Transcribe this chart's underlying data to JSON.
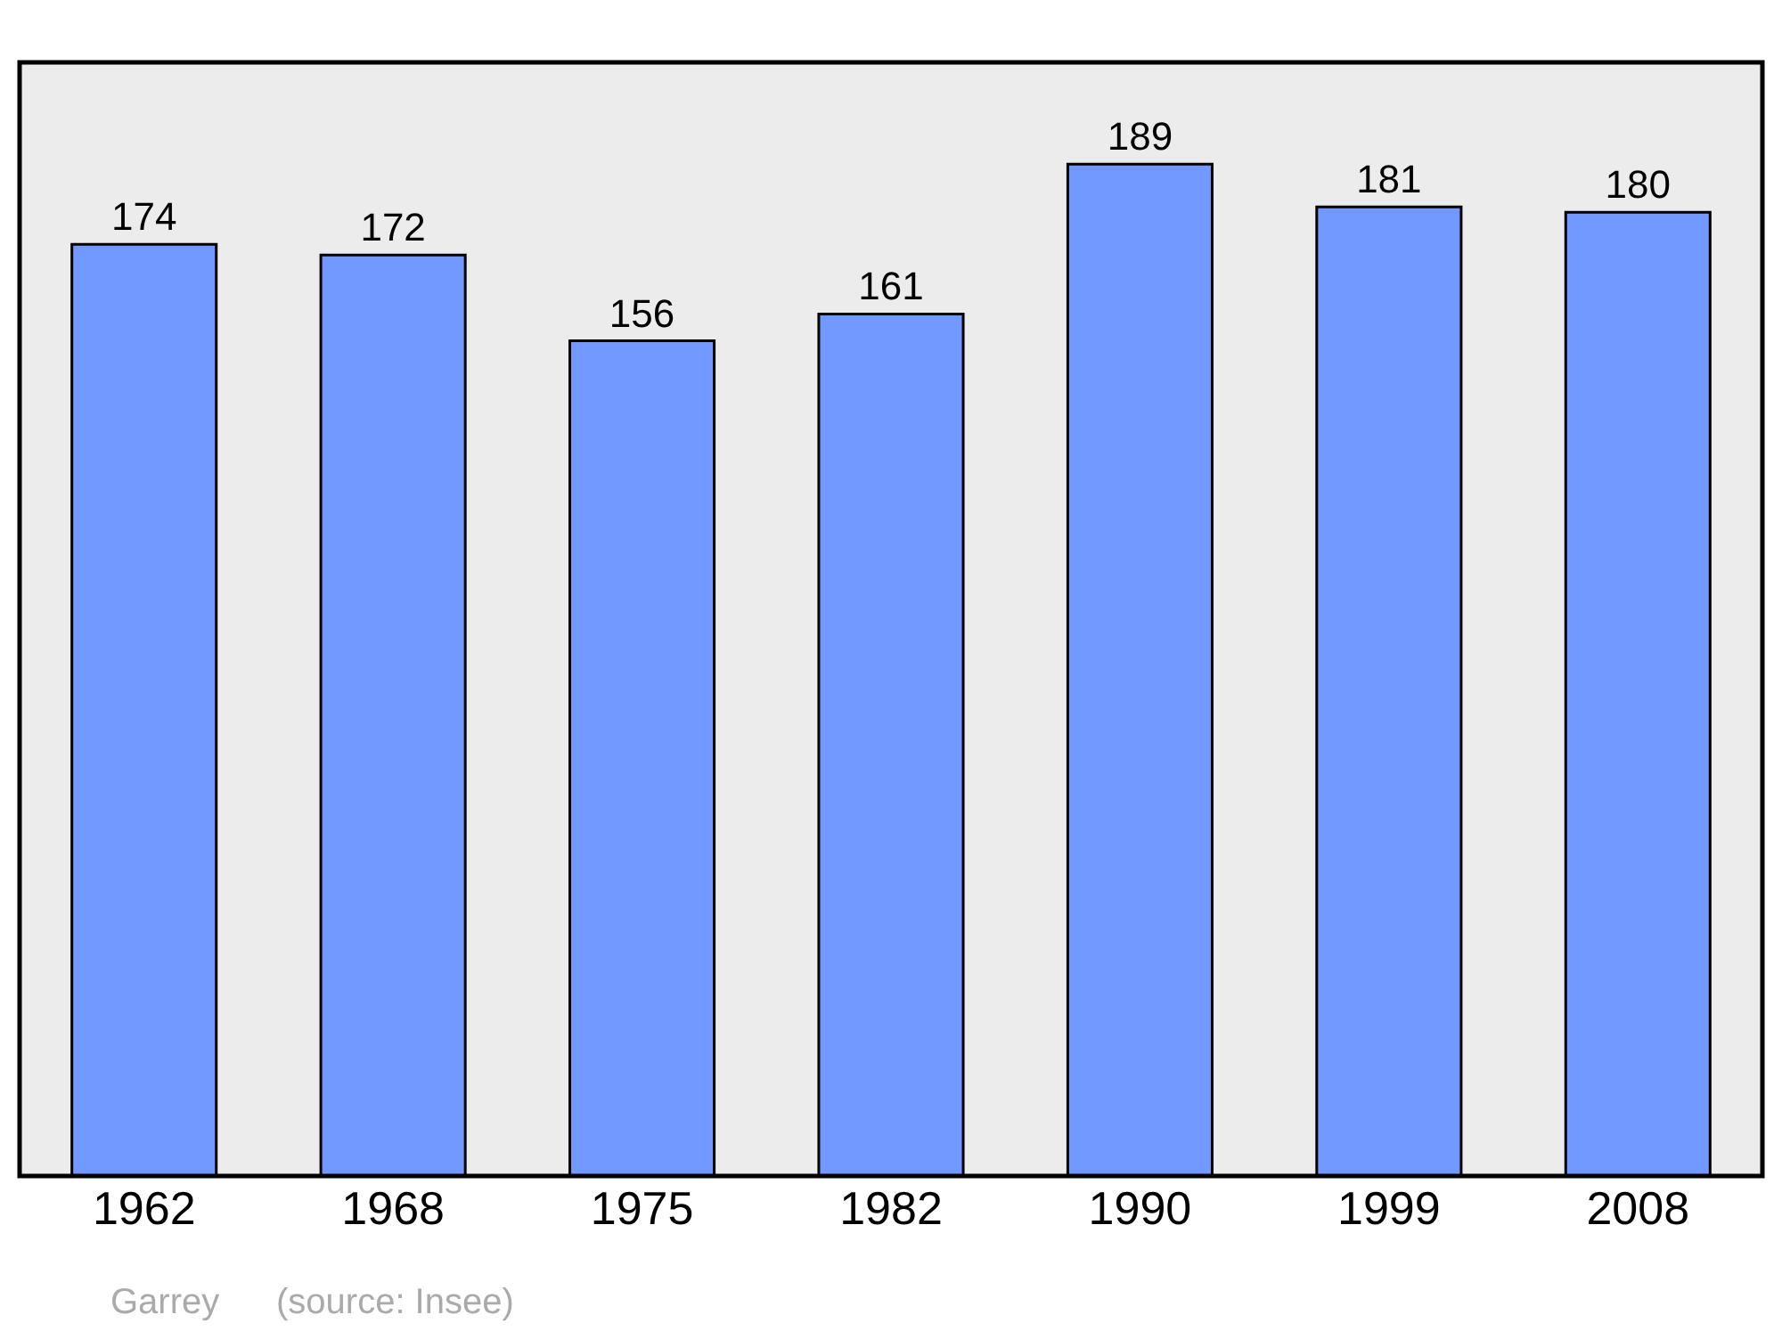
{
  "chart_data": {
    "type": "bar",
    "categories": [
      "1962",
      "1968",
      "1975",
      "1982",
      "1990",
      "1999",
      "2008"
    ],
    "values": [
      174,
      172,
      156,
      161,
      189,
      181,
      180
    ],
    "color": "#7299ff",
    "ylim": [
      0,
      208
    ],
    "data_labels": true,
    "grid": false,
    "tick_labels": "x",
    "annotations": [
      "Garrey",
      "(source: Insee)"
    ]
  }
}
